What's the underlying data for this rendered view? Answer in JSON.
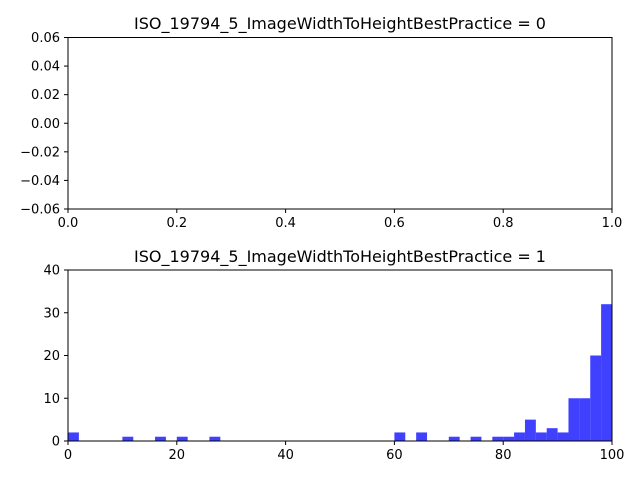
{
  "chart_data": [
    {
      "type": "bar",
      "title": "ISO_19794_5_ImageWidthToHeightBestPractice = 0",
      "xlim": [
        0.0,
        1.0
      ],
      "ylim": [
        -0.06,
        0.06
      ],
      "x_ticks": [
        "0.0",
        "0.2",
        "0.4",
        "0.6",
        "0.8",
        "1.0"
      ],
      "x_tick_values": [
        0.0,
        0.2,
        0.4,
        0.6,
        0.8,
        1.0
      ],
      "y_ticks": [
        "0.06",
        "0.04",
        "0.02",
        "0.00",
        "−0.02",
        "−0.04",
        "−0.06"
      ],
      "y_tick_values": [
        0.06,
        0.04,
        0.02,
        0.0,
        -0.02,
        -0.04,
        -0.06
      ],
      "bars": [],
      "bar_color": "#0000ff",
      "grid": false
    },
    {
      "type": "bar",
      "title": "ISO_19794_5_ImageWidthToHeightBestPractice = 1",
      "xlim": [
        0,
        100
      ],
      "ylim": [
        0,
        40
      ],
      "x_ticks": [
        "0",
        "20",
        "40",
        "60",
        "80",
        "100"
      ],
      "x_tick_values": [
        0,
        20,
        40,
        60,
        80,
        100
      ],
      "y_ticks": [
        "40",
        "30",
        "20",
        "10",
        "0"
      ],
      "y_tick_values": [
        40,
        30,
        20,
        10,
        0
      ],
      "bin_width": 2,
      "bars": [
        {
          "x": 0,
          "value": 2
        },
        {
          "x": 10,
          "value": 1
        },
        {
          "x": 16,
          "value": 1
        },
        {
          "x": 20,
          "value": 1
        },
        {
          "x": 26,
          "value": 1
        },
        {
          "x": 60,
          "value": 2
        },
        {
          "x": 64,
          "value": 2
        },
        {
          "x": 70,
          "value": 1
        },
        {
          "x": 74,
          "value": 1
        },
        {
          "x": 78,
          "value": 1
        },
        {
          "x": 80,
          "value": 1
        },
        {
          "x": 82,
          "value": 2
        },
        {
          "x": 84,
          "value": 5
        },
        {
          "x": 86,
          "value": 2
        },
        {
          "x": 88,
          "value": 3
        },
        {
          "x": 90,
          "value": 2
        },
        {
          "x": 92,
          "value": 10
        },
        {
          "x": 94,
          "value": 10
        },
        {
          "x": 96,
          "value": 20
        },
        {
          "x": 98,
          "value": 32
        }
      ],
      "bar_color": "#0000ff",
      "grid": false
    }
  ]
}
